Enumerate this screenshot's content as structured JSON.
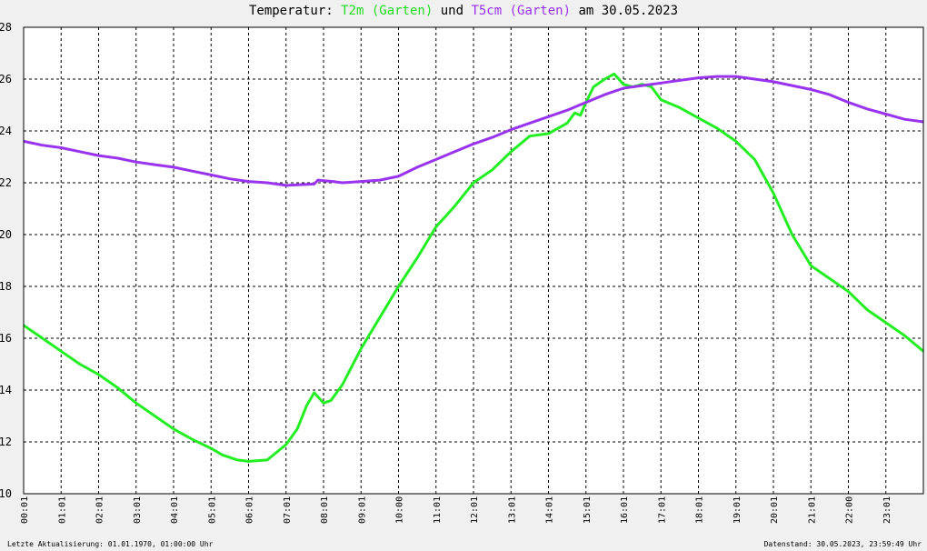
{
  "chart_data": {
    "type": "line",
    "title_parts": [
      {
        "text": "Temperatur: ",
        "color": "#000000"
      },
      {
        "text": "T2m (Garten)",
        "color": "#22dd22"
      },
      {
        "text": " und ",
        "color": "#000000"
      },
      {
        "text": "T5cm (Garten)",
        "color": "#9933ee"
      },
      {
        "text": " am 30.05.2023",
        "color": "#000000"
      }
    ],
    "xlabel": "",
    "ylabel": "",
    "ylim": [
      10,
      28
    ],
    "yticks": [
      10,
      12,
      14,
      16,
      18,
      20,
      22,
      24,
      26,
      28
    ],
    "xlim_hours": [
      0,
      24
    ],
    "xticks": [
      {
        "h": 0,
        "label": "00:01"
      },
      {
        "h": 1,
        "label": "01:01"
      },
      {
        "h": 2,
        "label": "02:01"
      },
      {
        "h": 3,
        "label": "03:01"
      },
      {
        "h": 4,
        "label": "04:01"
      },
      {
        "h": 5,
        "label": "05:01"
      },
      {
        "h": 6,
        "label": "06:01"
      },
      {
        "h": 7,
        "label": "07:01"
      },
      {
        "h": 8,
        "label": "08:01"
      },
      {
        "h": 9,
        "label": "09:01"
      },
      {
        "h": 10,
        "label": "10:00"
      },
      {
        "h": 11,
        "label": "11:01"
      },
      {
        "h": 12,
        "label": "12:01"
      },
      {
        "h": 13,
        "label": "13:01"
      },
      {
        "h": 14,
        "label": "14:01"
      },
      {
        "h": 15,
        "label": "15:01"
      },
      {
        "h": 16,
        "label": "16:01"
      },
      {
        "h": 17,
        "label": "17:01"
      },
      {
        "h": 18,
        "label": "18:01"
      },
      {
        "h": 19,
        "label": "19:01"
      },
      {
        "h": 20,
        "label": "20:01"
      },
      {
        "h": 21,
        "label": "21:01"
      },
      {
        "h": 22,
        "label": "22:00"
      },
      {
        "h": 23,
        "label": "23:01"
      }
    ],
    "grid": true,
    "series": [
      {
        "name": "T2m (Garten)",
        "color": "#22ee22",
        "points": [
          [
            0.0,
            16.5
          ],
          [
            0.5,
            16.0
          ],
          [
            1.0,
            15.5
          ],
          [
            1.5,
            15.0
          ],
          [
            2.0,
            14.6
          ],
          [
            2.5,
            14.1
          ],
          [
            3.0,
            13.5
          ],
          [
            3.5,
            13.0
          ],
          [
            4.0,
            12.5
          ],
          [
            4.5,
            12.1
          ],
          [
            5.0,
            11.75
          ],
          [
            5.3,
            11.5
          ],
          [
            5.7,
            11.3
          ],
          [
            6.0,
            11.25
          ],
          [
            6.5,
            11.3
          ],
          [
            7.0,
            11.9
          ],
          [
            7.3,
            12.5
          ],
          [
            7.55,
            13.4
          ],
          [
            7.75,
            13.9
          ],
          [
            8.0,
            13.5
          ],
          [
            8.2,
            13.6
          ],
          [
            8.5,
            14.2
          ],
          [
            9.0,
            15.6
          ],
          [
            9.5,
            16.8
          ],
          [
            10.0,
            18.0
          ],
          [
            10.5,
            19.1
          ],
          [
            11.0,
            20.3
          ],
          [
            11.25,
            20.7
          ],
          [
            11.5,
            21.1
          ],
          [
            12.0,
            22.0
          ],
          [
            12.5,
            22.5
          ],
          [
            13.0,
            23.2
          ],
          [
            13.5,
            23.8
          ],
          [
            14.0,
            23.9
          ],
          [
            14.5,
            24.3
          ],
          [
            14.7,
            24.7
          ],
          [
            14.85,
            24.6
          ],
          [
            15.0,
            25.1
          ],
          [
            15.2,
            25.7
          ],
          [
            15.5,
            26.0
          ],
          [
            15.75,
            26.2
          ],
          [
            16.0,
            25.8
          ],
          [
            16.25,
            25.7
          ],
          [
            16.5,
            25.8
          ],
          [
            16.75,
            25.7
          ],
          [
            17.0,
            25.2
          ],
          [
            17.5,
            24.9
          ],
          [
            18.0,
            24.5
          ],
          [
            18.5,
            24.1
          ],
          [
            19.0,
            23.6
          ],
          [
            19.5,
            22.9
          ],
          [
            20.0,
            21.6
          ],
          [
            20.5,
            20.0
          ],
          [
            21.0,
            18.8
          ],
          [
            21.5,
            18.3
          ],
          [
            22.0,
            17.8
          ],
          [
            22.5,
            17.1
          ],
          [
            23.0,
            16.6
          ],
          [
            23.5,
            16.1
          ],
          [
            24.0,
            15.5
          ]
        ]
      },
      {
        "name": "T5cm (Garten)",
        "color": "#9933ee",
        "points": [
          [
            0.0,
            23.6
          ],
          [
            0.5,
            23.45
          ],
          [
            1.0,
            23.35
          ],
          [
            1.5,
            23.2
          ],
          [
            2.0,
            23.05
          ],
          [
            2.5,
            22.95
          ],
          [
            3.0,
            22.8
          ],
          [
            3.5,
            22.7
          ],
          [
            4.0,
            22.6
          ],
          [
            4.5,
            22.45
          ],
          [
            5.0,
            22.3
          ],
          [
            5.5,
            22.15
          ],
          [
            6.0,
            22.05
          ],
          [
            6.5,
            22.0
          ],
          [
            7.0,
            21.9
          ],
          [
            7.75,
            21.95
          ],
          [
            7.85,
            22.1
          ],
          [
            8.25,
            22.05
          ],
          [
            8.5,
            22.0
          ],
          [
            9.0,
            22.05
          ],
          [
            9.5,
            22.1
          ],
          [
            10.0,
            22.25
          ],
          [
            10.5,
            22.6
          ],
          [
            11.0,
            22.9
          ],
          [
            11.5,
            23.2
          ],
          [
            12.0,
            23.5
          ],
          [
            12.5,
            23.75
          ],
          [
            13.0,
            24.05
          ],
          [
            13.5,
            24.3
          ],
          [
            14.0,
            24.55
          ],
          [
            14.5,
            24.8
          ],
          [
            15.0,
            25.1
          ],
          [
            15.5,
            25.4
          ],
          [
            16.0,
            25.65
          ],
          [
            16.5,
            25.75
          ],
          [
            17.0,
            25.85
          ],
          [
            17.5,
            25.95
          ],
          [
            18.0,
            26.05
          ],
          [
            18.5,
            26.1
          ],
          [
            19.0,
            26.1
          ],
          [
            19.5,
            26.0
          ],
          [
            20.0,
            25.9
          ],
          [
            20.5,
            25.75
          ],
          [
            21.0,
            25.6
          ],
          [
            21.5,
            25.4
          ],
          [
            22.0,
            25.1
          ],
          [
            22.5,
            24.85
          ],
          [
            23.0,
            24.65
          ],
          [
            23.5,
            24.45
          ],
          [
            24.0,
            24.35
          ]
        ]
      }
    ]
  },
  "footer": {
    "left": "Letzte Aktualisierung: 01.01.1970, 01:00:00 Uhr",
    "right": "Datenstand: 30.05.2023, 23:59:49 Uhr"
  }
}
